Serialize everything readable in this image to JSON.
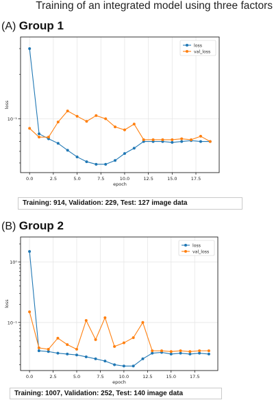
{
  "page_title": "Training of an integrated model using three factors",
  "panels": [
    {
      "letter": "(A)",
      "group": "Group 1",
      "caption": "Training: 914, Validation: 229, Test: 127 image data"
    },
    {
      "letter": "(B)",
      "group": "Group 2",
      "caption": "Training: 1007, Validation: 252, Test: 140 image data"
    }
  ],
  "chart_data": [
    {
      "type": "line",
      "title": "",
      "xlabel": "epoch",
      "ylabel": "loss",
      "y_scale": "log",
      "xlim": [
        -0.95,
        19.95
      ],
      "ylim": [
        0.043,
        0.36
      ],
      "x_ticks": [
        0.0,
        2.5,
        5.0,
        7.5,
        10.0,
        12.5,
        15.0,
        17.5
      ],
      "x_tick_labels": [
        "0.0",
        "2.5",
        "5.0",
        "7.5",
        "10.0",
        "12.5",
        "15.0",
        "17.5"
      ],
      "y_ticks": [
        0.1
      ],
      "y_tick_labels": [
        "10⁻¹"
      ],
      "grid": true,
      "legend": "top-right",
      "x": [
        0,
        1,
        2,
        3,
        4,
        5,
        6,
        7,
        8,
        9,
        10,
        11,
        12,
        13,
        14,
        15,
        16,
        17,
        18,
        19
      ],
      "series": [
        {
          "name": "loss",
          "color": "#1f77b4",
          "values": [
            0.3,
            0.079,
            0.073,
            0.068,
            0.061,
            0.055,
            0.051,
            0.049,
            0.049,
            0.052,
            0.058,
            0.063,
            0.07,
            0.07,
            0.07,
            0.069,
            0.07,
            0.071,
            0.07,
            0.07
          ]
        },
        {
          "name": "val_loss",
          "color": "#ff7f0e",
          "values": [
            0.086,
            0.075,
            0.075,
            0.095,
            0.113,
            0.104,
            0.096,
            0.105,
            0.1,
            0.088,
            0.084,
            0.092,
            0.072,
            0.072,
            0.072,
            0.072,
            0.073,
            0.072,
            0.076,
            0.07
          ]
        }
      ]
    },
    {
      "type": "line",
      "title": "",
      "xlabel": "epoch",
      "ylabel": "loss",
      "y_scale": "log",
      "xlim": [
        -0.95,
        19.95
      ],
      "ylim": [
        0.016,
        2.6
      ],
      "x_ticks": [
        0.0,
        2.5,
        5.0,
        7.5,
        10.0,
        12.5,
        15.0,
        17.5
      ],
      "x_tick_labels": [
        "0.0",
        "2.5",
        "5.0",
        "7.5",
        "10.0",
        "12.5",
        "15.0",
        "17.5"
      ],
      "y_ticks": [
        0.1,
        1.0
      ],
      "y_tick_labels": [
        "10⁻¹",
        "10⁰"
      ],
      "grid": true,
      "legend": "top-right",
      "x": [
        0,
        1,
        2,
        3,
        4,
        5,
        6,
        7,
        8,
        9,
        10,
        11,
        12,
        13,
        14,
        15,
        16,
        17,
        18,
        19
      ],
      "series": [
        {
          "name": "loss",
          "color": "#1f77b4",
          "values": [
            1.5,
            0.034,
            0.033,
            0.031,
            0.03,
            0.029,
            0.027,
            0.025,
            0.023,
            0.02,
            0.019,
            0.019,
            0.025,
            0.031,
            0.032,
            0.03,
            0.031,
            0.03,
            0.031,
            0.03
          ]
        },
        {
          "name": "val_loss",
          "color": "#ff7f0e",
          "values": [
            0.15,
            0.038,
            0.036,
            0.055,
            0.043,
            0.036,
            0.108,
            0.052,
            0.12,
            0.04,
            0.046,
            0.056,
            0.1,
            0.034,
            0.034,
            0.033,
            0.034,
            0.033,
            0.034,
            0.034
          ]
        }
      ]
    }
  ]
}
